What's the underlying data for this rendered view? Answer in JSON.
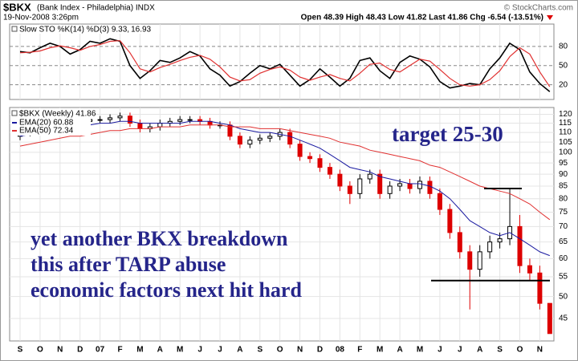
{
  "header": {
    "symbol": "$BKX",
    "name": "(Bank Index - Philadelphia) INDX",
    "date": "19-Nov-2008 3:26pm",
    "quote": "Open 48.39 High 48.43 Low 41.82 Last 41.86 Chg -6.54 (-13.51%)",
    "source": "© StockCharts.com"
  },
  "chart_data": [
    {
      "type": "line",
      "title": "Slow STO %K(14) %D(3) 9.33,",
      "title_value": "16.93",
      "title_value_color": "#dd0000",
      "series": [
        {
          "color": "#000000",
          "values": [
            72,
            70,
            78,
            85,
            80,
            68,
            75,
            88,
            85,
            92,
            88,
            50,
            30,
            42,
            58,
            55,
            62,
            72,
            65,
            45,
            35,
            18,
            25,
            38,
            50,
            45,
            52,
            35,
            18,
            28,
            45,
            32,
            18,
            30,
            58,
            62,
            42,
            30,
            55,
            65,
            60,
            48,
            25,
            15,
            18,
            22,
            20,
            45,
            62,
            85,
            75,
            40,
            22,
            9.33
          ]
        },
        {
          "color": "#e03030",
          "values": [
            70,
            71,
            73,
            78,
            81,
            78,
            74,
            80,
            83,
            88,
            89,
            70,
            45,
            40,
            47,
            52,
            58,
            63,
            66,
            60,
            48,
            32,
            26,
            28,
            38,
            44,
            48,
            43,
            32,
            27,
            32,
            36,
            30,
            26,
            38,
            52,
            54,
            44,
            40,
            50,
            60,
            57,
            44,
            30,
            20,
            18,
            20,
            28,
            42,
            64,
            78,
            68,
            40,
            16.93
          ]
        }
      ],
      "ylim": [
        -3,
        115
      ],
      "yticks": [
        20,
        50,
        80
      ],
      "grid": true
    },
    {
      "type": "candlestick",
      "categories": [
        "S",
        null,
        "O",
        null,
        "N",
        null,
        "D",
        null,
        "07",
        null,
        "F",
        null,
        "M",
        null,
        "A",
        null,
        "M",
        null,
        "J",
        null,
        "J",
        null,
        "A",
        null,
        "S",
        null,
        "O",
        null,
        "N",
        null,
        "D",
        null,
        "08",
        null,
        "F",
        null,
        "M",
        null,
        "A",
        null,
        "M",
        null,
        "J",
        null,
        "J",
        null,
        "A",
        null,
        "S",
        null,
        "O",
        null,
        "N",
        null
      ],
      "ohlc": {
        "name": "$BKX (Weekly) 41.86",
        "up_color": "#000000",
        "down_color": "#dd0000",
        "open": [
          108,
          110,
          111,
          113,
          114,
          115,
          114,
          116,
          117,
          117,
          118,
          119,
          115,
          112,
          113,
          115,
          116,
          117,
          117,
          116,
          114,
          114,
          108,
          104,
          106,
          107,
          108,
          110,
          104,
          98,
          97,
          93,
          90,
          85,
          82,
          88,
          90,
          82,
          85,
          86,
          84,
          87,
          82,
          76,
          68,
          62,
          57,
          62,
          65,
          66,
          70,
          58,
          56,
          48.39
        ],
        "high": [
          112,
          113,
          115,
          116,
          117,
          117,
          118,
          119,
          119,
          120,
          121,
          121,
          117,
          115,
          117,
          118,
          119,
          119,
          119,
          118,
          116,
          116,
          110,
          108,
          109,
          110,
          112,
          112,
          106,
          100,
          99,
          95,
          92,
          87,
          90,
          92,
          92,
          87,
          88,
          88,
          89,
          89,
          84,
          78,
          70,
          64,
          64,
          67,
          68,
          84,
          74,
          60,
          58,
          48.43
        ],
        "low": [
          106,
          108,
          109,
          111,
          112,
          112,
          112,
          114,
          115,
          115,
          116,
          113,
          110,
          110,
          111,
          113,
          114,
          115,
          114,
          112,
          112,
          106,
          102,
          102,
          104,
          105,
          106,
          102,
          96,
          95,
          91,
          88,
          83,
          78,
          80,
          86,
          80,
          80,
          83,
          82,
          82,
          80,
          74,
          66,
          60,
          47,
          55,
          60,
          63,
          64,
          56,
          54,
          47,
          41.82
        ],
        "close": [
          110,
          111,
          113,
          114,
          115,
          114,
          116,
          117,
          117,
          118,
          119,
          115,
          112,
          113,
          115,
          116,
          117,
          117,
          116,
          114,
          114,
          108,
          104,
          106,
          107,
          108,
          110,
          104,
          98,
          97,
          93,
          90,
          85,
          82,
          88,
          90,
          82,
          85,
          86,
          84,
          87,
          82,
          76,
          68,
          62,
          57,
          62,
          65,
          66,
          70,
          58,
          56,
          48.4,
          41.86
        ]
      },
      "series": [
        {
          "name": "EMA(20) 60.88",
          "color": "#1a1aa0",
          "values": [
            108,
            109,
            110,
            111,
            112,
            113,
            113,
            114,
            115,
            115,
            116,
            116,
            115,
            115,
            115,
            115,
            115,
            116,
            116,
            116,
            115,
            114,
            112,
            111,
            110,
            110,
            109,
            108,
            106,
            104,
            102,
            99,
            96,
            93,
            92,
            91,
            89,
            88,
            87,
            86,
            86,
            85,
            83,
            80,
            76,
            72,
            70,
            68,
            67,
            68,
            66,
            64,
            62,
            60.88
          ]
        },
        {
          "name": "EMA(50) 72.34",
          "color": "#e03030",
          "values": [
            103,
            104,
            105,
            106,
            107,
            108,
            108,
            109,
            110,
            111,
            111,
            112,
            112,
            112,
            113,
            113,
            113,
            114,
            114,
            114,
            114,
            113,
            113,
            113,
            112,
            112,
            112,
            111,
            110,
            109,
            108,
            107,
            105,
            104,
            103,
            101,
            100,
            99,
            98,
            97,
            96,
            94,
            93,
            91,
            89,
            87,
            85,
            84,
            83,
            82,
            80,
            78,
            75,
            72.34
          ]
        }
      ],
      "reference_lines": [
        84,
        54
      ],
      "log_scale": true,
      "ylim": [
        40.4,
        124
      ],
      "yticks": [
        45,
        50,
        55,
        60,
        65,
        70,
        75,
        80,
        85,
        90,
        95,
        100,
        105,
        110,
        115,
        120
      ],
      "grid": true,
      "annotations": [
        "target 25-30",
        "yet another BKX breakdown",
        "this after TARP abuse",
        "economic factors next hit hard"
      ]
    }
  ]
}
